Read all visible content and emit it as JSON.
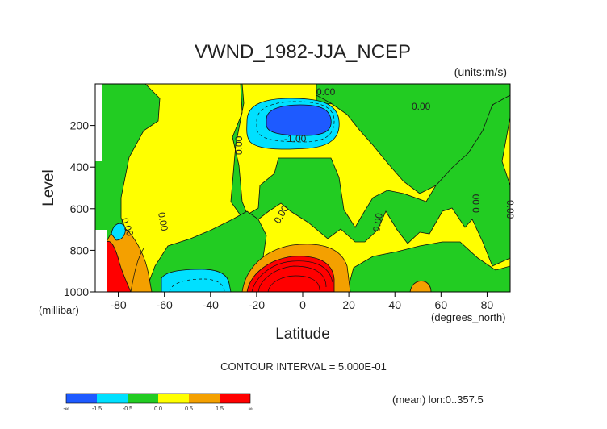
{
  "chart_data": {
    "type": "heatmap",
    "title": "VWND_1982-JJA_NCEP",
    "units": "(units:m/s)",
    "ylabel": "Level",
    "yunits": "(millibar)",
    "xlabel": "Latitude",
    "xunits": "(degrees_north)",
    "xlim": [
      -90,
      90
    ],
    "ylim": [
      1000,
      0
    ],
    "xticks": [
      "-80",
      "-60",
      "-40",
      "-20",
      "0",
      "20",
      "40",
      "60",
      "80"
    ],
    "yticks": [
      "200",
      "400",
      "600",
      "800",
      "1000"
    ],
    "contour_interval": "CONTOUR INTERVAL = 5.000E-01",
    "footnote": "(mean) lon:0..357.5",
    "colorbar": {
      "labels": [
        "-∞",
        "-1.5",
        "-0.5",
        "0.0",
        "0.5",
        "1.5",
        "∞"
      ],
      "colors": [
        "#1e5aff",
        "#00e0ff",
        "#22cc22",
        "#ffff00",
        "#f4a000",
        "#ff0000"
      ]
    },
    "contour_labels": [
      "0.00",
      "0.00",
      "0.00",
      "-1.00",
      "0.00",
      "0.00",
      "0.00",
      "0.00",
      "0.00",
      "0.00",
      "0.00"
    ],
    "regions": [
      {
        "name": "strong-negative-core-upper-tropics",
        "level": "<-1.5",
        "lat": [
          -12,
          10
        ],
        "pressure": [
          130,
          230
        ]
      },
      {
        "name": "negative-band-upper-tropics",
        "level": "-1.5..-0.5",
        "lat": [
          -25,
          12
        ],
        "pressure": [
          110,
          280
        ]
      },
      {
        "name": "negative-band-south-surface",
        "level": "-1.5..-0.5",
        "lat": [
          -62,
          -36
        ],
        "pressure": [
          900,
          1000
        ]
      },
      {
        "name": "positive-core-tropics-surface",
        "level": ">1.5",
        "lat": [
          -24,
          10
        ],
        "pressure": [
          850,
          1000
        ]
      },
      {
        "name": "positive-band-tropics-surface",
        "level": "0.5..1.5",
        "lat": [
          -28,
          20
        ],
        "pressure": [
          780,
          1000
        ]
      },
      {
        "name": "positive-core-antarctic-surface",
        "level": ">1.5",
        "lat": [
          -86,
          -82
        ],
        "pressure": [
          750,
          1000
        ]
      }
    ]
  }
}
